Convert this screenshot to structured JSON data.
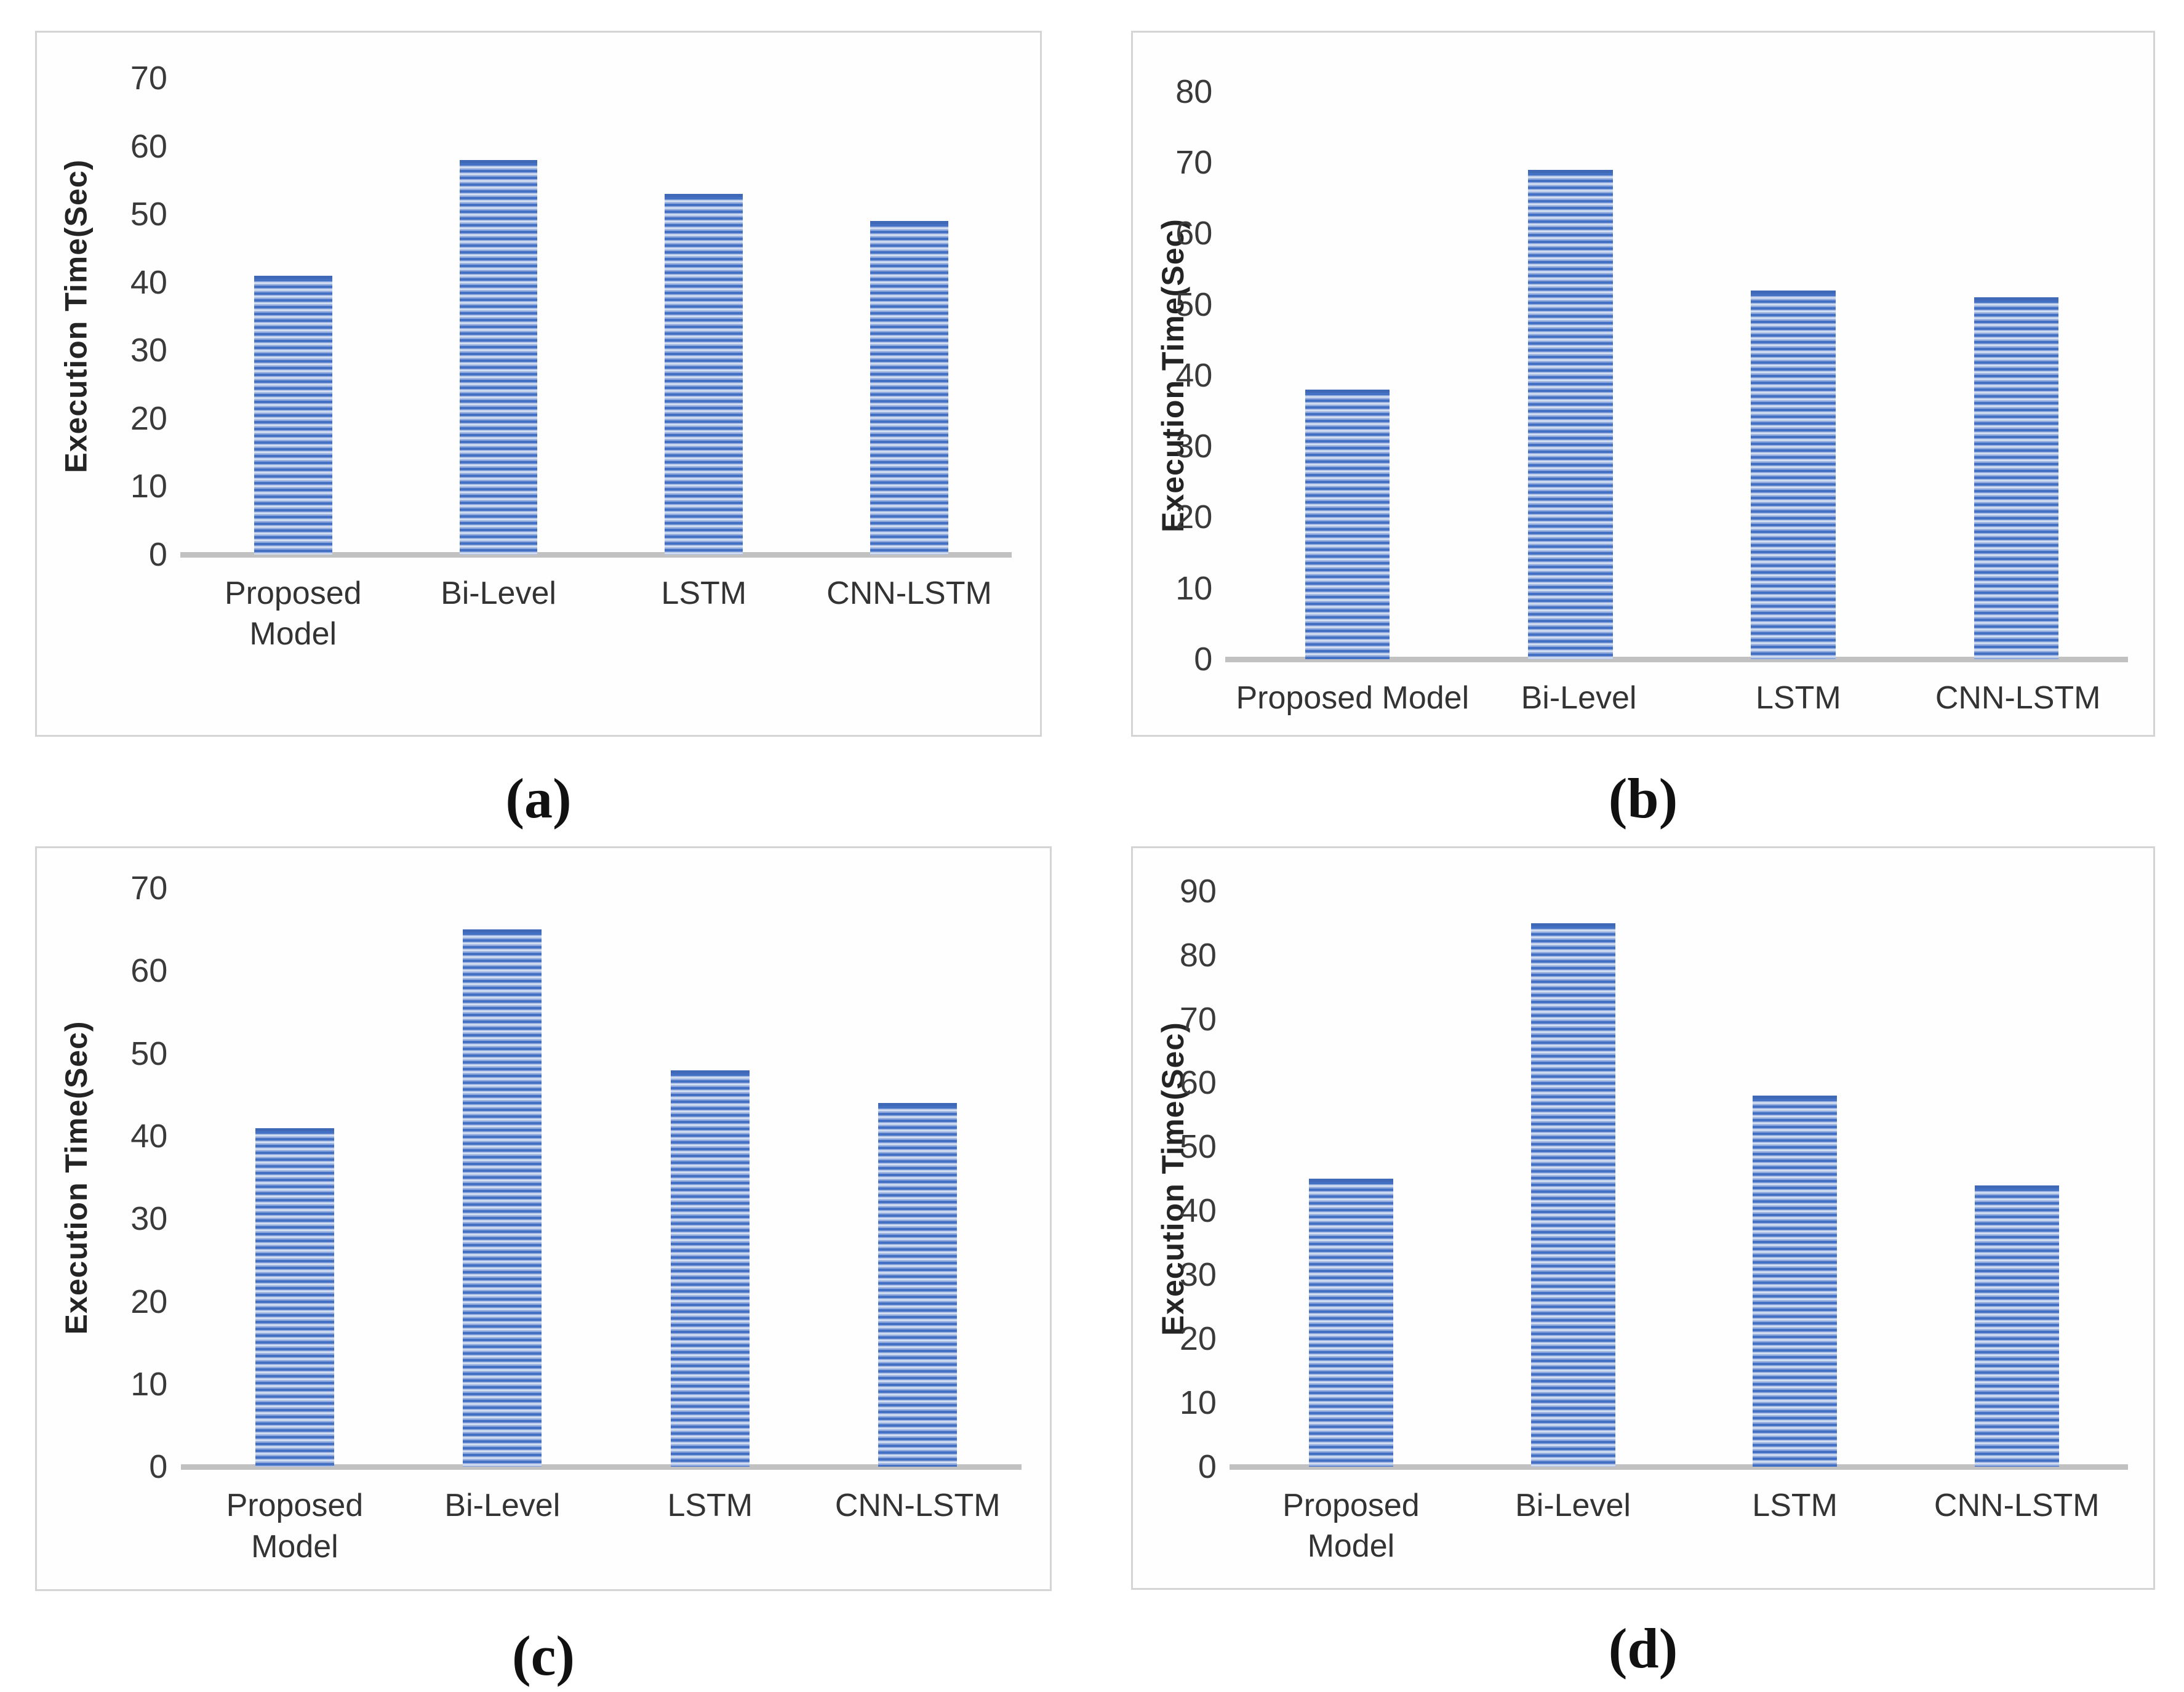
{
  "figure": {
    "description": "Four bar charts comparing execution time of models",
    "colors": {
      "bar_primary": "#4471c4",
      "bar_stripe_light": "#d4dff2",
      "bar_top_cap": "#3f69b7",
      "axis_line": "#c1c1c1",
      "panel_border": "#d4d4d4",
      "tick_text": "#3a3a3a",
      "axis_title_text": "#242424"
    }
  },
  "chart_data": [
    {
      "id": "a",
      "type": "bar",
      "caption": "(a)",
      "ylabel": "Execution Time(Sec)",
      "categories": [
        "Proposed Model",
        "Bi-Level",
        "LSTM",
        "CNN-LSTM"
      ],
      "values": [
        41,
        58,
        53,
        49
      ],
      "ylim": [
        0,
        70
      ],
      "yticks": [
        0,
        10,
        20,
        30,
        40,
        50,
        60,
        70
      ],
      "grid": false,
      "legend": "none",
      "wrap_first_category": true
    },
    {
      "id": "b",
      "type": "bar",
      "caption": "(b)",
      "ylabel": "Execution Time(Sec)",
      "categories": [
        "Proposed Model",
        "Bi-Level",
        "LSTM",
        "CNN-LSTM"
      ],
      "values": [
        38,
        69,
        52,
        51
      ],
      "ylim": [
        0,
        80
      ],
      "yticks": [
        0,
        10,
        20,
        30,
        40,
        50,
        60,
        70,
        80
      ],
      "grid": false,
      "legend": "none",
      "wrap_first_category": false
    },
    {
      "id": "c",
      "type": "bar",
      "caption": "(c)",
      "ylabel": "Execution Time(Sec)",
      "categories": [
        "Proposed Model",
        "Bi-Level",
        "LSTM",
        "CNN-LSTM"
      ],
      "values": [
        41,
        65,
        48,
        44
      ],
      "ylim": [
        0,
        70
      ],
      "yticks": [
        0,
        10,
        20,
        30,
        40,
        50,
        60,
        70
      ],
      "grid": false,
      "legend": "none",
      "wrap_first_category": true
    },
    {
      "id": "d",
      "type": "bar",
      "caption": "(d)",
      "ylabel": "Execution Time(Sec)",
      "categories": [
        "Proposed Model",
        "Bi-Level",
        "LSTM",
        "CNN-LSTM"
      ],
      "values": [
        45,
        85,
        58,
        44
      ],
      "ylim": [
        0,
        90
      ],
      "yticks": [
        0,
        10,
        20,
        30,
        40,
        50,
        60,
        70,
        80,
        90
      ],
      "grid": false,
      "legend": "none",
      "wrap_first_category": true
    }
  ]
}
